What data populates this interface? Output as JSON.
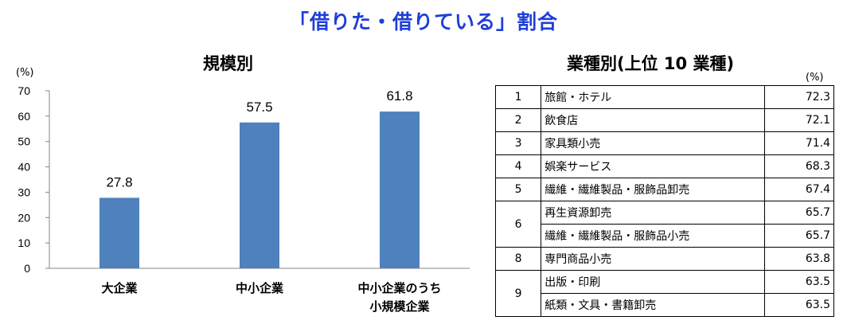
{
  "page": {
    "title": "「借りた・借りている」割合",
    "left_subtitle": "規模別",
    "right_subtitle": "業種別(上位 10 業種)",
    "table_unit": "(%)"
  },
  "chart_data": {
    "type": "bar",
    "ylabel": "(%)",
    "ylim": [
      0,
      70
    ],
    "yticks": [
      0,
      10,
      20,
      30,
      40,
      50,
      60,
      70
    ],
    "categories": [
      "大企業",
      "中小企業",
      "中小企業のうち\n小規模企業"
    ],
    "values": [
      27.8,
      57.5,
      61.8
    ],
    "value_labels": [
      "27.8",
      "57.5",
      "61.8"
    ],
    "bar_color": "#4F81BD",
    "grid": false
  },
  "ranking": [
    {
      "rank": "1",
      "items": [
        {
          "name": "旅館・ホテル",
          "value": "72.3"
        }
      ]
    },
    {
      "rank": "2",
      "items": [
        {
          "name": "飲食店",
          "value": "72.1"
        }
      ]
    },
    {
      "rank": "3",
      "items": [
        {
          "name": "家具類小売",
          "value": "71.4"
        }
      ]
    },
    {
      "rank": "4",
      "items": [
        {
          "name": "娯楽サービス",
          "value": "68.3"
        }
      ]
    },
    {
      "rank": "5",
      "items": [
        {
          "name": "繊維・繊維製品・服飾品卸売",
          "value": "67.4"
        }
      ]
    },
    {
      "rank": "6",
      "items": [
        {
          "name": "再生資源卸売",
          "value": "65.7"
        },
        {
          "name": "繊維・繊維製品・服飾品小売",
          "value": "65.7"
        }
      ]
    },
    {
      "rank": "8",
      "items": [
        {
          "name": "専門商品小売",
          "value": "63.8"
        }
      ]
    },
    {
      "rank": "9",
      "items": [
        {
          "name": "出版・印刷",
          "value": "63.5"
        },
        {
          "name": "紙類・文具・書籍卸売",
          "value": "63.5"
        }
      ]
    }
  ]
}
